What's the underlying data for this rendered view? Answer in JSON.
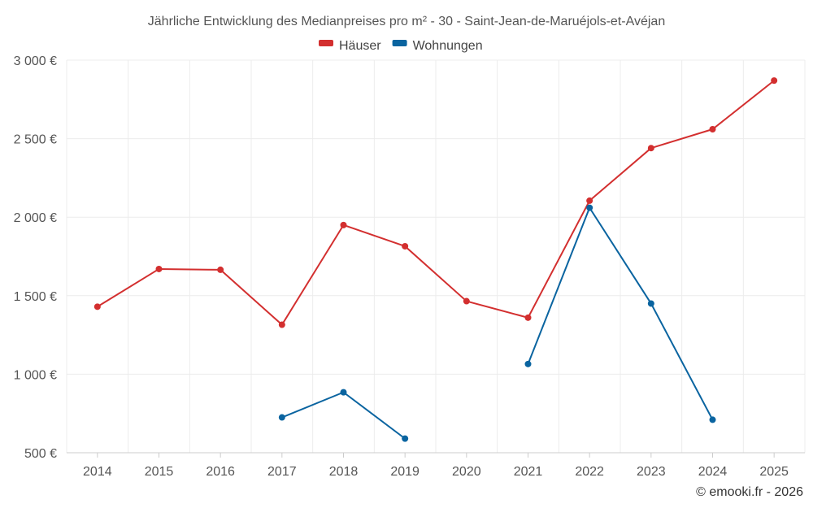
{
  "chart_data": {
    "type": "line",
    "title": "Jährliche Entwicklung des Medianpreises pro m² - 30 - Saint-Jean-de-Maruéjols-et-Avéjan",
    "categories": [
      "2014",
      "2015",
      "2016",
      "2017",
      "2018",
      "2019",
      "2020",
      "2021",
      "2022",
      "2023",
      "2024",
      "2025"
    ],
    "series": [
      {
        "name": "Häuser",
        "color": "#d32f2f",
        "values": [
          1430,
          1670,
          1665,
          1315,
          1950,
          1815,
          1465,
          1360,
          2105,
          2440,
          2560,
          2870
        ]
      },
      {
        "name": "Wohnungen",
        "color": "#0a64a0",
        "values": [
          null,
          null,
          null,
          725,
          885,
          590,
          null,
          1065,
          2060,
          1450,
          710,
          null
        ]
      }
    ],
    "ylim": [
      500,
      3000
    ],
    "yticks": [
      500,
      1000,
      1500,
      2000,
      2500,
      3000
    ],
    "ytick_labels": [
      "500 €",
      "1 000 €",
      "1 500 €",
      "2 000 €",
      "2 500 €",
      "3 000 €"
    ],
    "xlabel": "",
    "ylabel": "",
    "legend_position": "top-center",
    "grid": true
  },
  "credit": "© emooki.fr - 2026"
}
